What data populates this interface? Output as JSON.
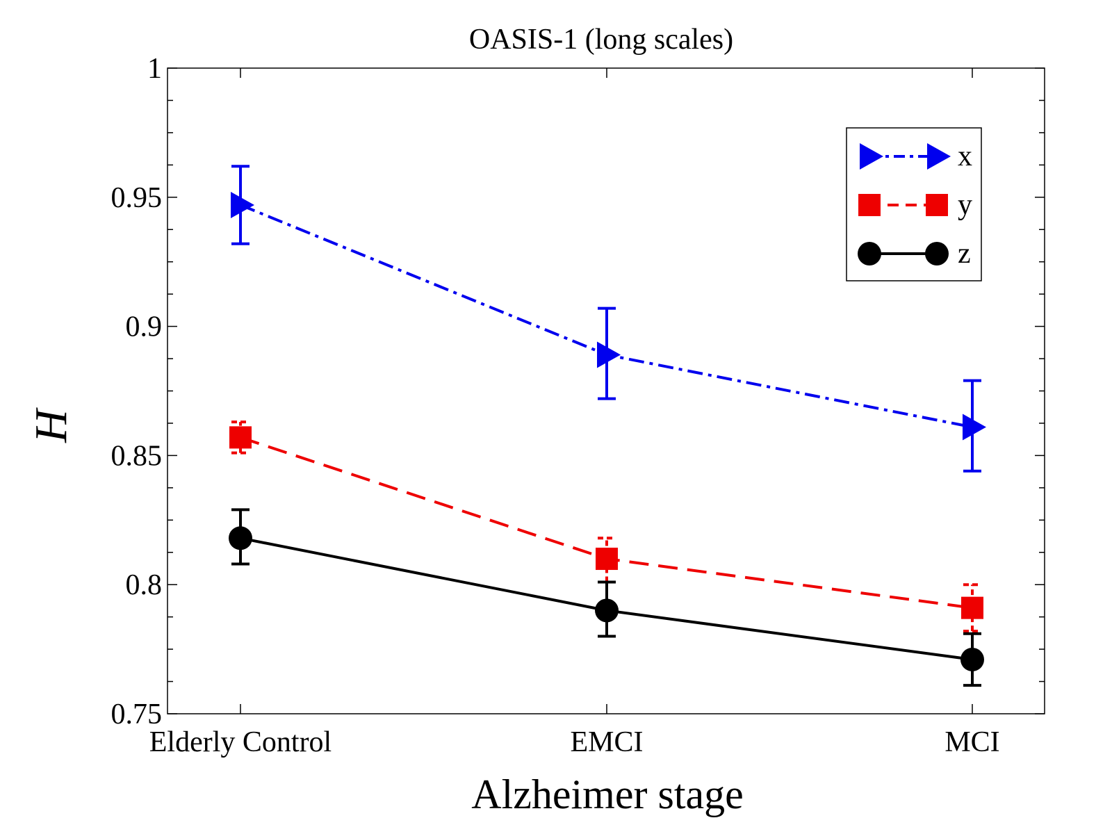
{
  "chart_data": {
    "type": "line",
    "title": "OASIS-1 (long scales)",
    "xlabel": "Alzheimer stage",
    "ylabel": "H",
    "categories": [
      "Elderly Control",
      "EMCI",
      "MCI"
    ],
    "ylim": [
      0.75,
      1.0
    ],
    "yticks": [
      0.75,
      0.8,
      0.85,
      0.9,
      0.95,
      1.0
    ],
    "ytick_labels": [
      "0.75",
      "0.8",
      "0.85",
      "0.9",
      "0.95",
      "1"
    ],
    "grid": false,
    "legend_position": "top-right",
    "series": [
      {
        "name": "x",
        "color": "#0000ee",
        "line_style": "dash-dot",
        "marker": "triangle-right",
        "values": [
          0.947,
          0.889,
          0.861
        ],
        "error_low": [
          0.932,
          0.872,
          0.844
        ],
        "error_high": [
          0.962,
          0.907,
          0.879
        ]
      },
      {
        "name": "y",
        "color": "#ee0000",
        "line_style": "dashed",
        "marker": "square",
        "values": [
          0.857,
          0.81,
          0.791
        ],
        "error_low": [
          0.851,
          0.801,
          0.782
        ],
        "error_high": [
          0.863,
          0.818,
          0.8
        ]
      },
      {
        "name": "z",
        "color": "#000000",
        "line_style": "solid",
        "marker": "circle",
        "values": [
          0.818,
          0.79,
          0.771
        ],
        "error_low": [
          0.808,
          0.78,
          0.761
        ],
        "error_high": [
          0.829,
          0.801,
          0.781
        ]
      }
    ]
  }
}
